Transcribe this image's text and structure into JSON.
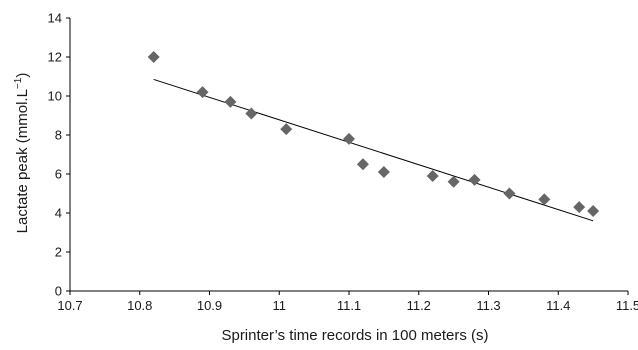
{
  "chart_data": {
    "type": "scatter",
    "xlabel": "Sprinter’s time records in 100 meters (s)",
    "ylabel": "Lactate peak (mmol.L",
    "ylabel_superscript": "−1",
    "ylabel_suffix": ")",
    "xlim": [
      10.7,
      11.5
    ],
    "ylim": [
      0,
      14
    ],
    "x_ticks": [
      10.7,
      10.8,
      10.9,
      11,
      11.1,
      11.2,
      11.3,
      11.4,
      11.5
    ],
    "x_tick_labels": [
      "10.7",
      "10.8",
      "10.9",
      "11",
      "11.1",
      "11.2",
      "11.3",
      "11.4",
      "11.5"
    ],
    "y_ticks": [
      0,
      2,
      4,
      6,
      8,
      10,
      12,
      14
    ],
    "y_tick_labels": [
      "0",
      "2",
      "4",
      "6",
      "8",
      "10",
      "12",
      "14"
    ],
    "grid": false,
    "marker": "diamond",
    "marker_color": "#666666",
    "trendline_color": "#000000",
    "series": [
      {
        "x": [
          10.82,
          10.89,
          10.93,
          10.96,
          11.01,
          11.1,
          11.12,
          11.15,
          11.22,
          11.25,
          11.28,
          11.33,
          11.38,
          11.43,
          11.45
        ],
        "y": [
          12.0,
          10.2,
          9.7,
          9.1,
          8.3,
          7.8,
          6.5,
          6.1,
          5.9,
          5.6,
          5.7,
          5.0,
          4.7,
          4.3,
          4.1
        ]
      }
    ],
    "trendline": {
      "x": [
        10.82,
        11.45
      ],
      "y": [
        10.85,
        3.6
      ]
    }
  }
}
